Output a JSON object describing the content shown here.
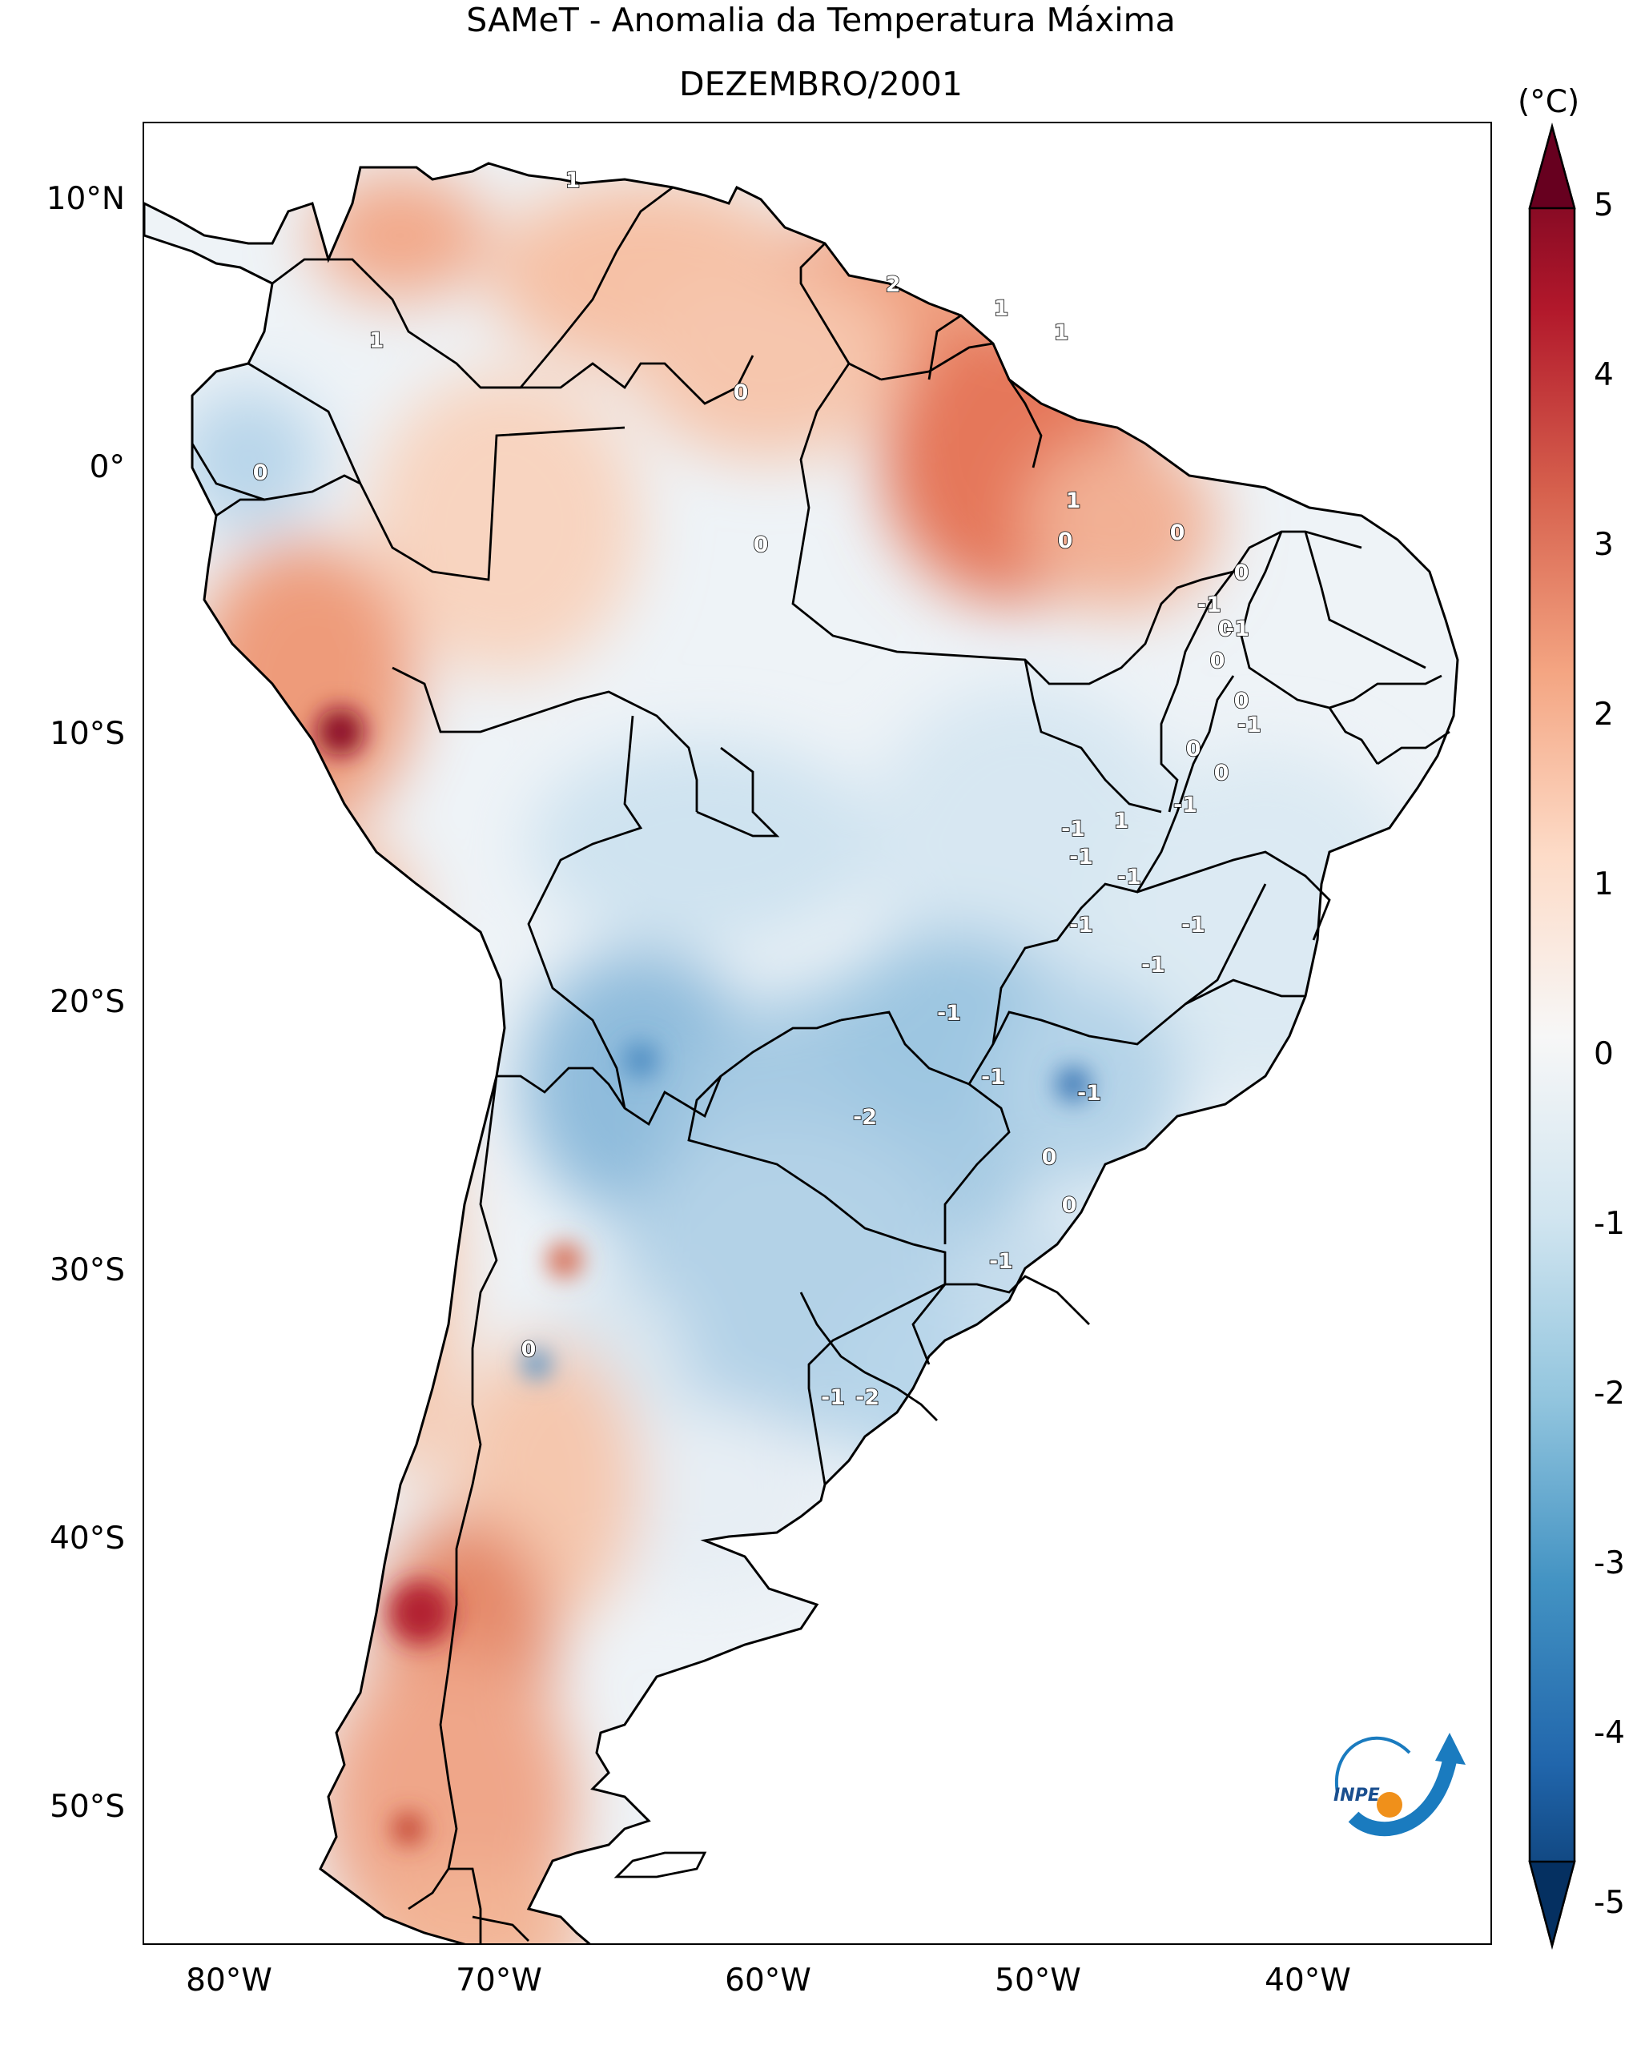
{
  "title": "SAMeT - Anomalia da Temperatura Máxima",
  "subtitle": "DEZEMBRO/2001",
  "colorbar": {
    "unit": "(°C)",
    "min": -5,
    "max": 5,
    "ticks": [
      "5",
      "4",
      "3",
      "2",
      "1",
      "0",
      "-1",
      "-2",
      "-3",
      "-4",
      "-5"
    ],
    "colors": [
      "#67001f",
      "#b2182b",
      "#d6604d",
      "#f4a582",
      "#fddbc7",
      "#f7f7f7",
      "#d1e5f0",
      "#92c5de",
      "#4393c3",
      "#2166ac",
      "#053061"
    ]
  },
  "axes": {
    "lat_labels": [
      "10°N",
      "0°",
      "10°S",
      "20°S",
      "30°S",
      "40°S",
      "50°S"
    ],
    "lon_labels": [
      "80°W",
      "70°W",
      "60°W",
      "50°W",
      "40°W"
    ],
    "lon_range": [
      -83,
      -33
    ],
    "lat_range": [
      -56,
      13
    ]
  },
  "contour_labels": [
    "1",
    "1",
    "2",
    "1",
    "1",
    "0",
    "0",
    "0",
    "1",
    "0",
    "0",
    "0",
    "-1",
    "0",
    "-1",
    "0",
    "0",
    "-1",
    "0",
    "0",
    "-1",
    "1",
    "-1",
    "-1",
    "-1",
    "-1",
    "-1",
    "-1",
    "-2",
    "-1",
    "-1",
    "-1",
    "0",
    "0",
    "-1",
    "0",
    "-1",
    "-2"
  ],
  "logo_text": "INPE"
}
